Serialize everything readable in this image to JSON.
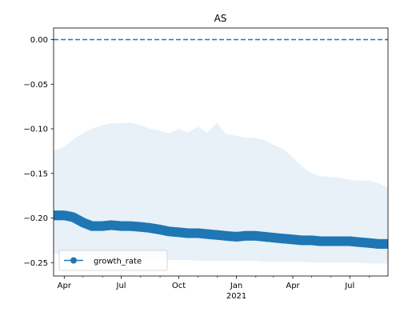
{
  "chart_data": {
    "type": "line",
    "title": "AS",
    "xlabel": "",
    "ylabel": "",
    "x_start": "2020-03-15",
    "x_end": "2021-08-31",
    "ylim": [
      -0.265,
      0.013
    ],
    "grid": false,
    "legend_position": "lower-left",
    "y_ticks": [
      0.0,
      -0.05,
      -0.1,
      -0.15,
      -0.2,
      -0.25
    ],
    "y_tick_labels": [
      "0.00",
      "−0.05",
      "−0.10",
      "−0.15",
      "−0.20",
      "−0.25"
    ],
    "x_ticks": [
      {
        "date": "2020-04-01",
        "label": "Apr",
        "sublabel": ""
      },
      {
        "date": "2020-07-01",
        "label": "Jul",
        "sublabel": ""
      },
      {
        "date": "2020-10-01",
        "label": "Oct",
        "sublabel": ""
      },
      {
        "date": "2021-01-01",
        "label": "Jan",
        "sublabel": "2021"
      },
      {
        "date": "2021-04-01",
        "label": "Apr",
        "sublabel": ""
      },
      {
        "date": "2021-07-01",
        "label": "Jul",
        "sublabel": ""
      }
    ],
    "x_minor_ticks": [
      "2020-05-01",
      "2020-06-01",
      "2020-08-01",
      "2020-09-01",
      "2020-11-01",
      "2020-12-01",
      "2021-02-01",
      "2021-03-01",
      "2021-05-01",
      "2021-06-01",
      "2021-08-01"
    ],
    "series": [
      {
        "name": "growth_rate",
        "marker": "circle",
        "color": "#1f77b4",
        "x": [
          "2020-03-15",
          "2020-04-01",
          "2020-04-15",
          "2020-05-01",
          "2020-05-15",
          "2020-06-01",
          "2020-06-15",
          "2020-07-01",
          "2020-07-15",
          "2020-08-01",
          "2020-08-15",
          "2020-09-01",
          "2020-09-15",
          "2020-10-01",
          "2020-10-15",
          "2020-11-01",
          "2020-11-15",
          "2020-12-01",
          "2020-12-15",
          "2021-01-01",
          "2021-01-15",
          "2021-02-01",
          "2021-02-15",
          "2021-03-01",
          "2021-03-15",
          "2021-04-01",
          "2021-04-15",
          "2021-05-01",
          "2021-05-15",
          "2021-06-01",
          "2021-06-15",
          "2021-07-01",
          "2021-07-15",
          "2021-08-01",
          "2021-08-15",
          "2021-08-31"
        ],
        "y": [
          -0.197,
          -0.197,
          -0.199,
          -0.205,
          -0.209,
          -0.209,
          -0.208,
          -0.209,
          -0.209,
          -0.21,
          -0.211,
          -0.213,
          -0.215,
          -0.216,
          -0.217,
          -0.217,
          -0.218,
          -0.219,
          -0.22,
          -0.221,
          -0.22,
          -0.22,
          -0.221,
          -0.222,
          -0.223,
          -0.224,
          -0.225,
          -0.225,
          -0.226,
          -0.226,
          -0.226,
          -0.226,
          -0.227,
          -0.228,
          -0.229,
          -0.229
        ]
      }
    ],
    "band": {
      "color": "#e8f0f8",
      "x": [
        "2020-03-15",
        "2020-04-01",
        "2020-04-15",
        "2020-05-01",
        "2020-05-15",
        "2020-06-01",
        "2020-06-15",
        "2020-07-01",
        "2020-07-15",
        "2020-08-01",
        "2020-08-15",
        "2020-09-01",
        "2020-09-15",
        "2020-10-01",
        "2020-10-15",
        "2020-11-01",
        "2020-11-15",
        "2020-12-01",
        "2020-12-15",
        "2021-01-01",
        "2021-01-15",
        "2021-02-01",
        "2021-02-15",
        "2021-03-01",
        "2021-03-15",
        "2021-04-01",
        "2021-04-15",
        "2021-05-01",
        "2021-05-15",
        "2021-06-01",
        "2021-06-15",
        "2021-07-01",
        "2021-07-15",
        "2021-08-01",
        "2021-08-15",
        "2021-08-31"
      ],
      "upper": [
        -0.125,
        -0.12,
        -0.112,
        -0.105,
        -0.1,
        -0.096,
        -0.094,
        -0.094,
        -0.093,
        -0.096,
        -0.1,
        -0.102,
        -0.105,
        -0.1,
        -0.104,
        -0.098,
        -0.104,
        -0.093,
        -0.106,
        -0.108,
        -0.11,
        -0.11,
        -0.113,
        -0.118,
        -0.122,
        -0.132,
        -0.142,
        -0.15,
        -0.153,
        -0.154,
        -0.155,
        -0.157,
        -0.158,
        -0.158,
        -0.161,
        -0.166
      ],
      "lower": [
        -0.24,
        -0.24,
        -0.241,
        -0.242,
        -0.243,
        -0.244,
        -0.244,
        -0.245,
        -0.245,
        -0.246,
        -0.246,
        -0.246,
        -0.247,
        -0.247,
        -0.247,
        -0.248,
        -0.248,
        -0.248,
        -0.248,
        -0.248,
        -0.248,
        -0.248,
        -0.249,
        -0.249,
        -0.249,
        -0.249,
        -0.249,
        -0.25,
        -0.25,
        -0.25,
        -0.25,
        -0.25,
        -0.25,
        -0.251,
        -0.251,
        -0.251
      ]
    },
    "reference_line": {
      "y": 0.0,
      "style": "dashed",
      "color": "#1f77b4"
    },
    "legend": [
      {
        "label": "growth_rate",
        "marker": "circle",
        "color": "#1f77b4"
      }
    ]
  }
}
